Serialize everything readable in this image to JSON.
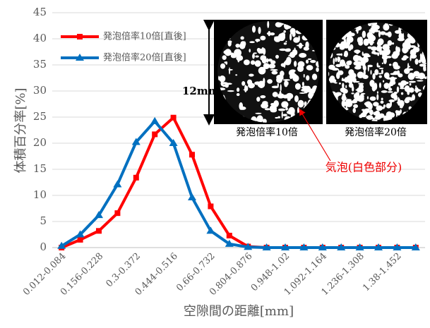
{
  "chart_data": {
    "type": "line",
    "y_label": "体積百分率[%]",
    "x_label": "空隙間の距離[mm]",
    "categories": [
      "0.012-0.084",
      null,
      "0.156-0.228",
      null,
      "0.3-0.372",
      null,
      "0.444-0.516",
      null,
      "0.66-0.732",
      null,
      "0.804-0.876",
      null,
      "0.948-1.02",
      null,
      "1.092-1.164",
      null,
      "1.236-1.308",
      null,
      "1.38-1.452",
      null
    ],
    "series": [
      {
        "name": "発泡倍率10倍[直後]",
        "color": "#ff0000",
        "marker": "square",
        "values": [
          0,
          1.5,
          3.2,
          6.6,
          13.4,
          21.7,
          24.9,
          17.8,
          7.9,
          2.3,
          0.2,
          0,
          0,
          0,
          0,
          0,
          0,
          0,
          0,
          0
        ]
      },
      {
        "name": "発泡倍率20倍[直後]",
        "color": "#0070c0",
        "marker": "triangle",
        "values": [
          0.3,
          2.5,
          6.2,
          12.1,
          20.2,
          24.2,
          20,
          9.6,
          3.2,
          0.7,
          0.1,
          0,
          0,
          0,
          0,
          0,
          0,
          0,
          0,
          0
        ]
      }
    ],
    "ylim": [
      0,
      45
    ],
    "yticks": [
      0,
      5,
      10,
      15,
      20,
      25,
      30,
      35,
      40,
      45
    ],
    "grid": true,
    "annotations": {
      "scale": "12mm",
      "image1": "発泡倍率10倍",
      "image2": "発泡倍率20倍",
      "bubble": "気泡(白色部分)"
    }
  }
}
